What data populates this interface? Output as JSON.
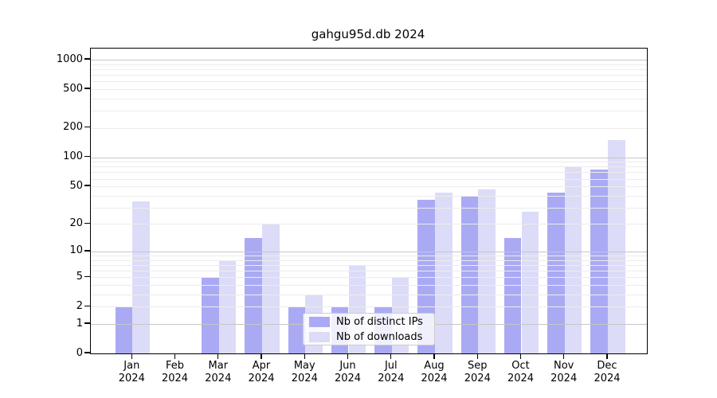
{
  "title": "gahgu95d.db 2024",
  "chart_data": {
    "type": "bar",
    "title": "gahgu95d.db 2024",
    "categories": [
      "Jan",
      "Feb",
      "Mar",
      "Apr",
      "May",
      "Jun",
      "Jul",
      "Aug",
      "Sep",
      "Oct",
      "Nov",
      "Dec"
    ],
    "category_year": "2024",
    "series": [
      {
        "name": "Nb of distinct IPs",
        "color": "#aaaaf4",
        "values": [
          2,
          0,
          5,
          14,
          2,
          2,
          2,
          36,
          40,
          14,
          43,
          75
        ]
      },
      {
        "name": "Nb of downloads",
        "color": "#dcdcf8",
        "values": [
          35,
          0,
          8,
          20,
          3,
          7,
          5,
          43,
          46,
          27,
          80,
          150
        ]
      }
    ],
    "y_ticks": [
      0,
      1,
      2,
      5,
      10,
      20,
      50,
      100,
      200,
      500,
      1000
    ],
    "y_scale": "log10(value+1)",
    "y_max": 1300,
    "grid": true,
    "legend_position": "lower center, inside plot",
    "colors": {
      "major_grid": "#c6c6c6",
      "minor_grid": "#ececec",
      "axis": "#000000",
      "background": "#ffffff"
    }
  }
}
